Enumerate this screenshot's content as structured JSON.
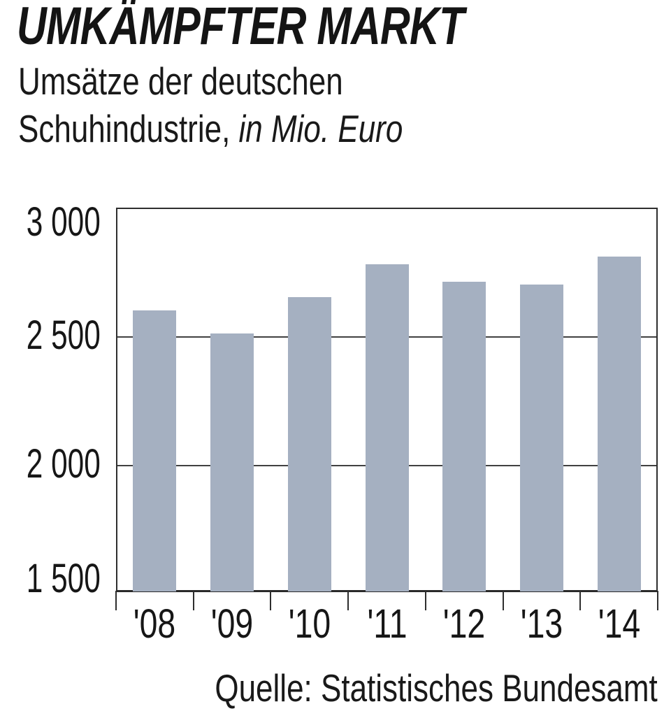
{
  "header": {
    "title": "UMKÄMPFTER MARKT",
    "subtitle_line1": "Umsätze der deutschen",
    "subtitle_line2_normal": "Schuhindustrie, ",
    "subtitle_line2_italic": "in Mio. Euro"
  },
  "chart_data": {
    "type": "bar",
    "title": "Umsätze der deutschen Schuhindustrie, in Mio. Euro",
    "categories": [
      "'08",
      "'09",
      "'10",
      "'11",
      "'12",
      "'13",
      "'14"
    ],
    "values": [
      2600,
      2510,
      2650,
      2780,
      2710,
      2700,
      2810
    ],
    "unit": "Mio. Euro",
    "xlabel": "",
    "ylabel": "",
    "ylim": [
      1500,
      3000
    ],
    "yticks": [
      3000,
      2500,
      2000,
      1500
    ],
    "ytick_labels": [
      "3 000",
      "2 500",
      "2 000",
      "1 500"
    ],
    "grid": "horizontal",
    "legend": "none",
    "bar_color": "#a5b0c1"
  },
  "source": {
    "label": "Quelle: Statistisches Bundesamt"
  },
  "colors": {
    "bar": "#a5b0c1",
    "line": "#3a3a3a",
    "text": "#191919"
  }
}
